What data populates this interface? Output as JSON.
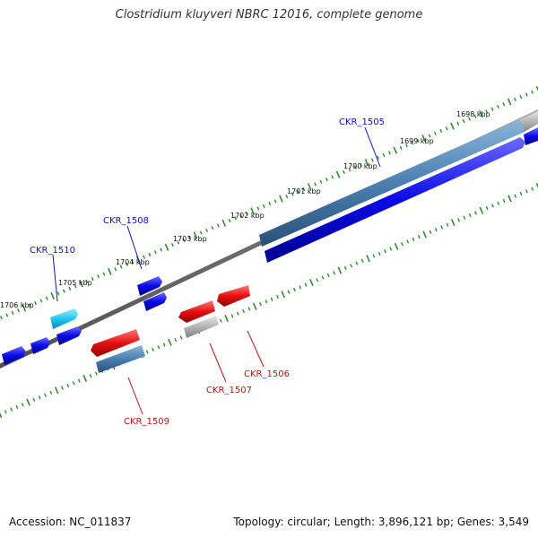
{
  "title": "Clostridium kluyveri NBRC 12016, complete genome",
  "footer": {
    "accession": "Accession: NC_011837",
    "summary": "Topology: circular; Length: 3,896,121 bp; Genes: 3,549"
  },
  "colors": {
    "backbone": "#7a7a7a",
    "tick": "#2e8b2e",
    "forward_label": "#1010c0",
    "reverse_label": "#c81010",
    "blue_gene": "#0a0ae6",
    "steel_gene": "#4a7fb0",
    "cyan_gene": "#22c8f0",
    "red_gene": "#e61010",
    "gray_gene": "#b4b4b4"
  },
  "scale_labels": [
    "1698 kbp",
    "1699 kbp",
    "1700 kbp",
    "1701 kbp",
    "1702 kbp",
    "1703 kbp",
    "1704 kbp",
    "1705 kbp",
    "1706 kbp"
  ],
  "gene_labels": {
    "ckr1505": "CKR_1505",
    "ckr1506": "CKR_1506",
    "ckr1507": "CKR_1507",
    "ckr1508": "CKR_1508",
    "ckr1509": "CKR_1509",
    "ckr1510": "CKR_1510"
  }
}
